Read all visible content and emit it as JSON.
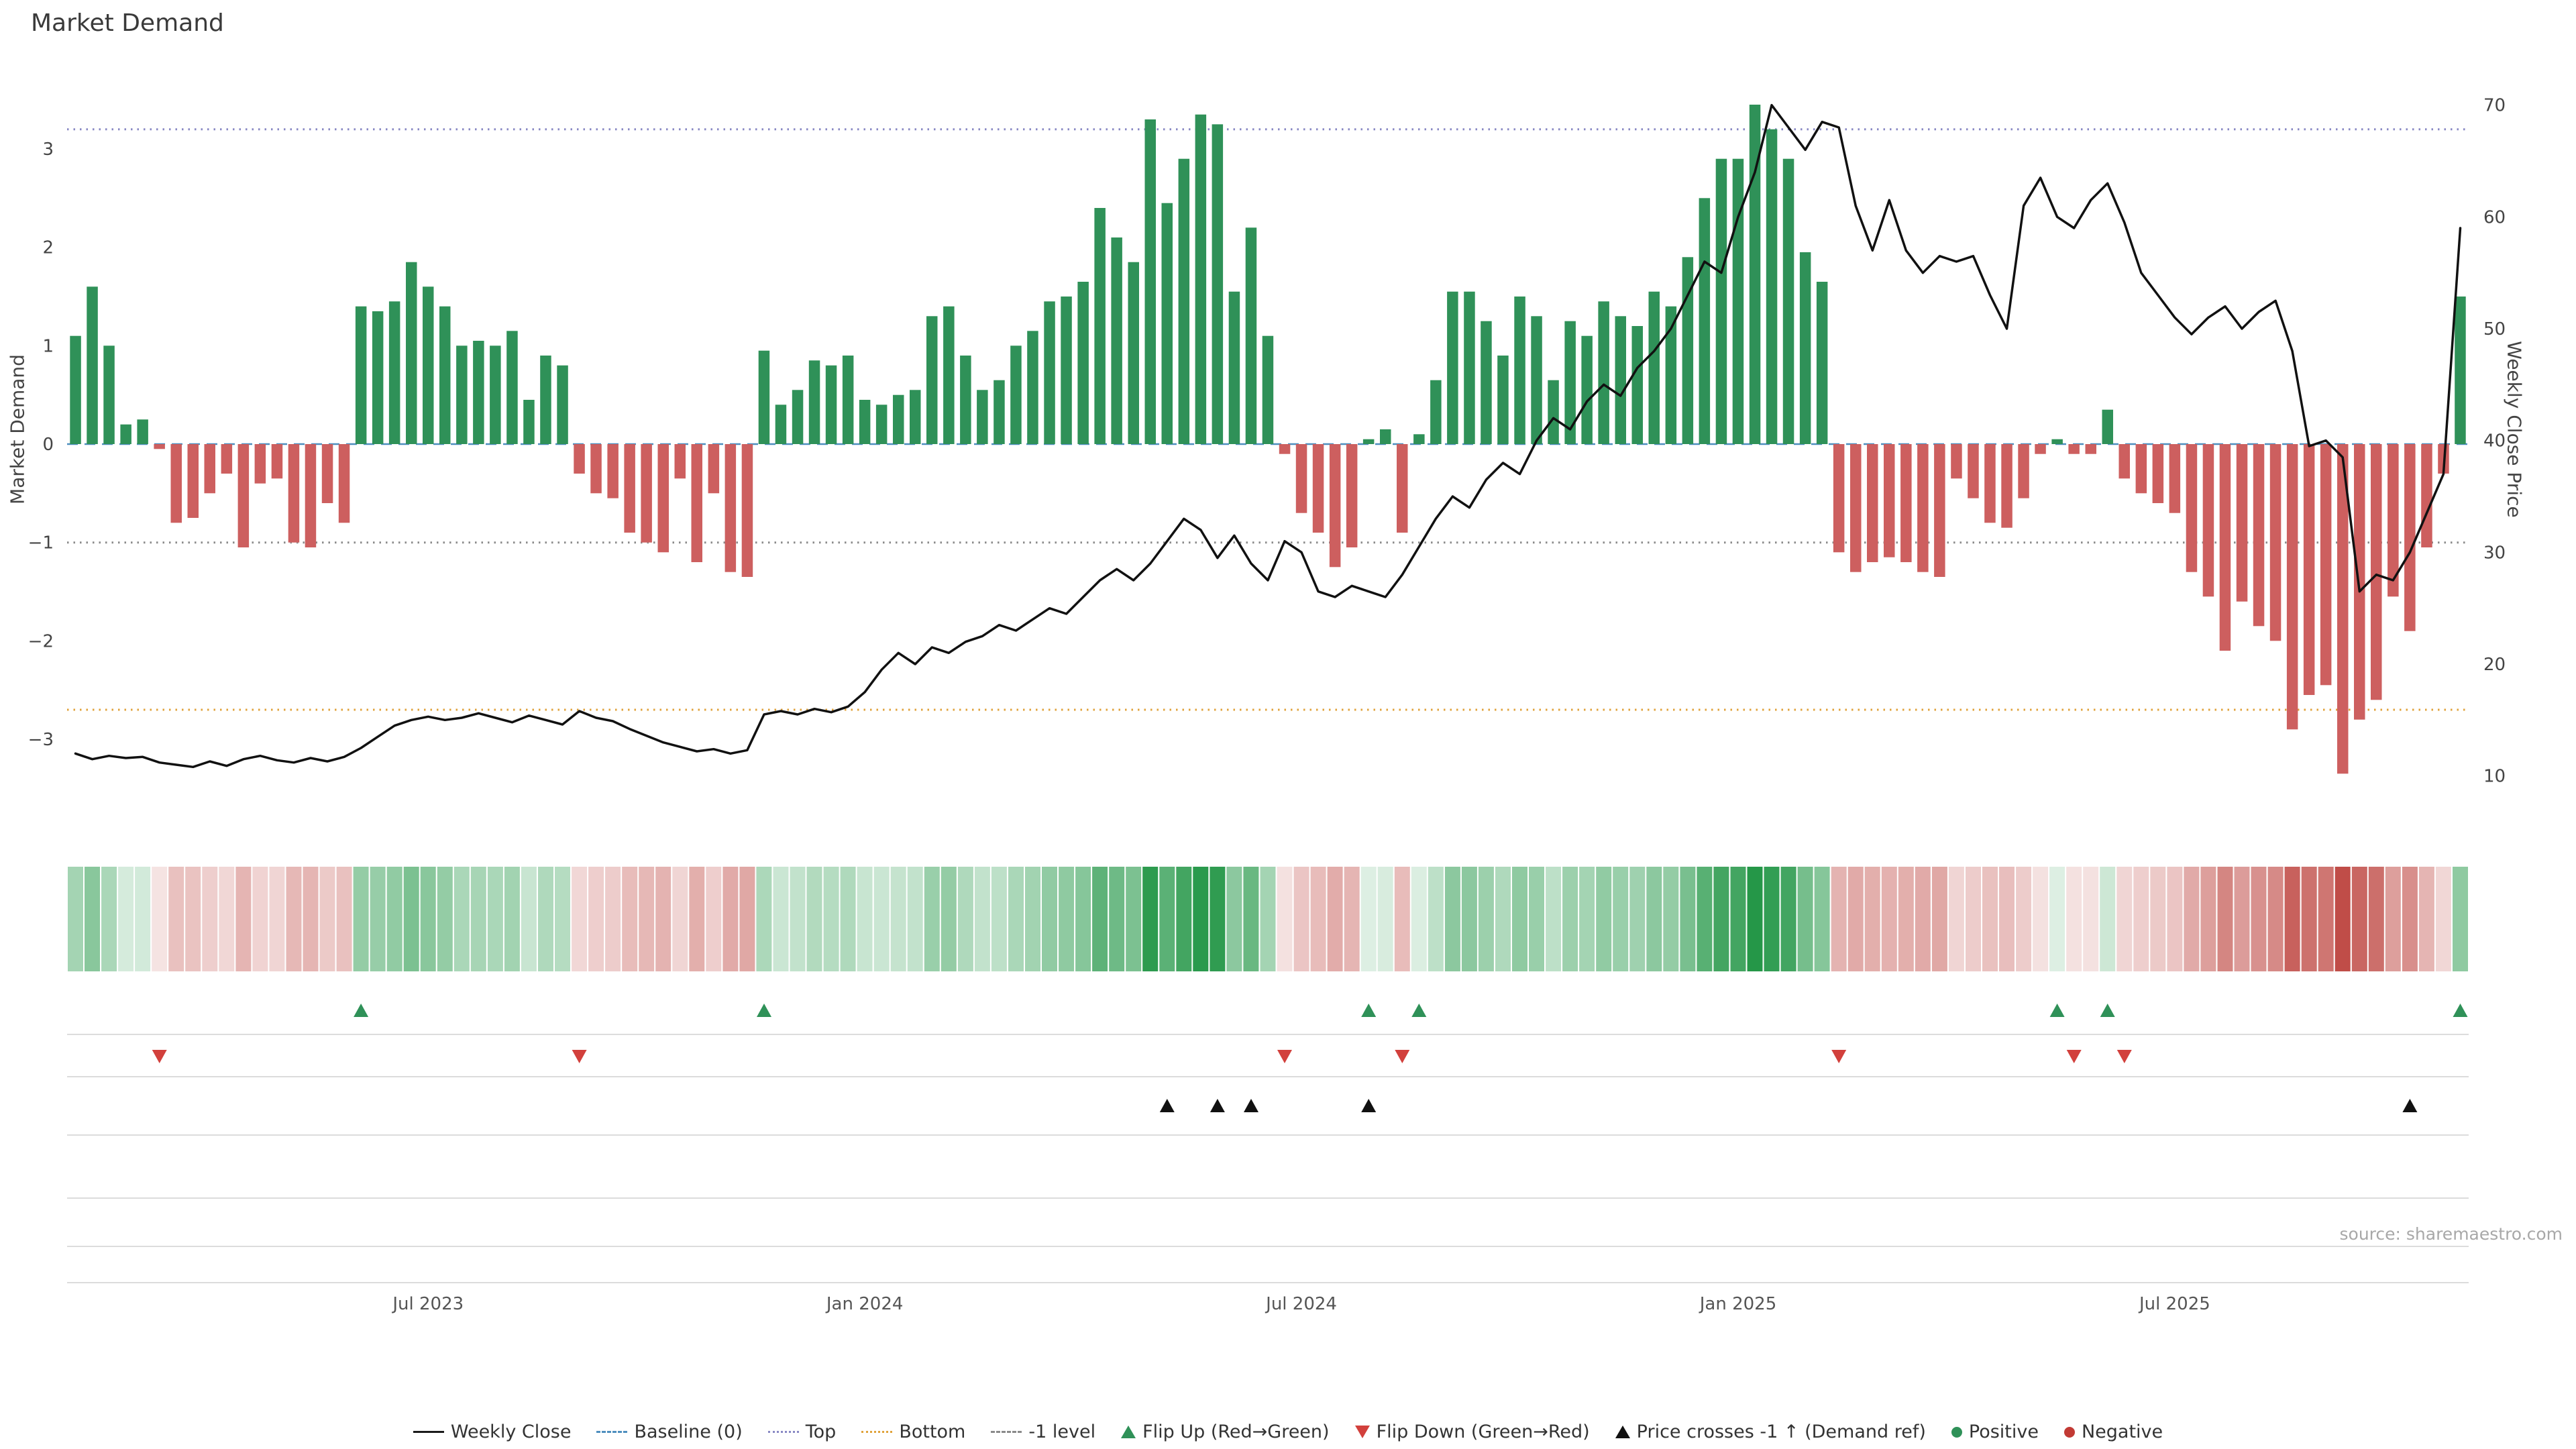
{
  "title": "Market Demand",
  "source": "source: sharemaestro.com",
  "axes": {
    "left_label": "Market Demand",
    "right_label": "Weekly Close Price",
    "left_ticks": [
      {
        "label": "3",
        "value": 3
      },
      {
        "label": "2",
        "value": 2
      },
      {
        "label": "1",
        "value": 1
      },
      {
        "label": "0",
        "value": 0
      },
      {
        "label": "−1",
        "value": -1
      },
      {
        "label": "−2",
        "value": -2
      },
      {
        "label": "−3",
        "value": -3
      }
    ],
    "right_ticks": [
      70,
      60,
      50,
      40,
      30,
      20,
      10
    ],
    "x_ticks": [
      {
        "label": "Jul 2023",
        "week": 21
      },
      {
        "label": "Jan 2024",
        "week": 47
      },
      {
        "label": "Jul 2024",
        "week": 73
      },
      {
        "label": "Jan 2025",
        "week": 99
      },
      {
        "label": "Jul 2025",
        "week": 125
      }
    ]
  },
  "colors": {
    "positive": "#2f9158",
    "negative": "#cd5f5f",
    "price_line": "#111111",
    "top_line": "#8888c4",
    "bottom_line": "#e0a23a",
    "minus_one_line": "#8a8a8a",
    "baseline_line": "#4f8fbf",
    "flip_up": "#2f9158",
    "flip_down": "#d2403c",
    "price_cross": "#111111",
    "lane_divider": "#dcdcdc",
    "tick_text": "#444444",
    "source_text": "#a8a8a8"
  },
  "legend": [
    {
      "label": "Weekly Close",
      "glyph": "line-solid",
      "color": "#1a1a1a"
    },
    {
      "label": "Baseline (0)",
      "glyph": "line-dashed",
      "color": "#4f8fbf"
    },
    {
      "label": "Top",
      "glyph": "line-dotted",
      "color": "#8888c4"
    },
    {
      "label": "Bottom",
      "glyph": "line-dotted",
      "color": "#e0a23a"
    },
    {
      "label": "-1 level",
      "glyph": "line-dashed",
      "color": "#8a8a8a"
    },
    {
      "label": "Flip Up (Red→Green)",
      "glyph": "tri-up",
      "color": "#2f9158"
    },
    {
      "label": "Flip Down (Green→Red)",
      "glyph": "tri-down",
      "color": "#d2403c"
    },
    {
      "label": "Price crosses -1 ↑ (Demand ref)",
      "glyph": "tri-up",
      "color": "#111111"
    },
    {
      "label": "Positive",
      "glyph": "dot",
      "color": "#2f9158"
    },
    {
      "label": "Negative",
      "glyph": "dot",
      "color": "#c23a34"
    }
  ],
  "chart_data": {
    "type": "bar+line",
    "title": "Market Demand",
    "start_date": "2023-02-06",
    "interval": "weekly",
    "left_axis_range": [
      -3.6,
      3.9
    ],
    "right_axis_range": [
      8,
      74
    ],
    "reference_lines": {
      "baseline": 0,
      "top": 3.2,
      "bottom": -2.7,
      "minus_one": -1
    },
    "series": [
      {
        "name": "Market Demand",
        "type": "bar",
        "axis": "left",
        "values": [
          1.1,
          1.6,
          1.0,
          0.2,
          0.25,
          -0.05,
          -0.8,
          -0.75,
          -0.5,
          -0.3,
          -1.05,
          -0.4,
          -0.35,
          -1.0,
          -1.05,
          -0.6,
          -0.8,
          1.4,
          1.35,
          1.45,
          1.85,
          1.6,
          1.4,
          1.0,
          1.05,
          1.0,
          1.15,
          0.45,
          0.9,
          0.8,
          -0.3,
          -0.5,
          -0.55,
          -0.9,
          -1.0,
          -1.1,
          -0.35,
          -1.2,
          -0.5,
          -1.3,
          -1.35,
          0.95,
          0.4,
          0.55,
          0.85,
          0.8,
          0.9,
          0.45,
          0.4,
          0.5,
          0.55,
          1.3,
          1.4,
          0.9,
          0.55,
          0.65,
          1.0,
          1.15,
          1.45,
          1.5,
          1.65,
          2.4,
          2.1,
          1.85,
          3.3,
          2.45,
          2.9,
          3.35,
          3.25,
          1.55,
          2.2,
          1.1,
          -0.1,
          -0.7,
          -0.9,
          -1.25,
          -1.05,
          0.05,
          0.15,
          -0.9,
          0.1,
          0.65,
          1.55,
          1.55,
          1.25,
          0.9,
          1.5,
          1.3,
          0.65,
          1.25,
          1.1,
          1.45,
          1.3,
          1.2,
          1.55,
          1.4,
          1.9,
          2.5,
          2.9,
          2.9,
          3.45,
          3.2,
          2.9,
          1.95,
          1.65,
          -1.1,
          -1.3,
          -1.2,
          -1.15,
          -1.2,
          -1.3,
          -1.35,
          -0.35,
          -0.55,
          -0.8,
          -0.85,
          -0.55,
          -0.1,
          0.05,
          -0.1,
          -0.1,
          0.35,
          -0.35,
          -0.5,
          -0.6,
          -0.7,
          -1.3,
          -1.55,
          -2.1,
          -1.6,
          -1.85,
          -2.0,
          -2.9,
          -2.55,
          -2.45,
          -3.35,
          -2.8,
          -2.6,
          -1.55,
          -1.9,
          -1.05,
          -0.3,
          1.5
        ]
      },
      {
        "name": "Weekly Close",
        "type": "line",
        "axis": "right",
        "values": [
          12.0,
          11.5,
          11.8,
          11.6,
          11.7,
          11.2,
          11.0,
          10.8,
          11.3,
          10.9,
          11.5,
          11.8,
          11.4,
          11.2,
          11.6,
          11.3,
          11.7,
          12.5,
          13.5,
          14.5,
          15.0,
          15.3,
          15.0,
          15.2,
          15.6,
          15.2,
          14.8,
          15.4,
          15.0,
          14.6,
          15.8,
          15.2,
          14.9,
          14.2,
          13.6,
          13.0,
          12.6,
          12.2,
          12.4,
          12.0,
          12.3,
          15.5,
          15.8,
          15.5,
          16.0,
          15.7,
          16.2,
          17.5,
          19.5,
          21.0,
          20.0,
          21.5,
          21.0,
          22.0,
          22.5,
          23.5,
          23.0,
          24.0,
          25.0,
          24.5,
          26.0,
          27.5,
          28.5,
          27.5,
          29.0,
          31.0,
          33.0,
          32.0,
          29.5,
          31.5,
          29.0,
          27.5,
          31.0,
          30.0,
          26.5,
          26.0,
          27.0,
          26.5,
          26.0,
          28.0,
          30.5,
          33.0,
          35.0,
          34.0,
          36.5,
          38.0,
          37.0,
          40.0,
          42.0,
          41.0,
          43.5,
          45.0,
          44.0,
          46.5,
          48.0,
          50.0,
          53.0,
          56.0,
          55.0,
          60.0,
          64.0,
          70.0,
          68.0,
          66.0,
          68.5,
          68.0,
          61.0,
          57.0,
          61.5,
          57.0,
          55.0,
          56.5,
          56.0,
          56.5,
          53.0,
          50.0,
          61.0,
          63.5,
          60.0,
          59.0,
          61.5,
          63.0,
          59.5,
          55.0,
          53.0,
          51.0,
          49.5,
          51.0,
          52.0,
          50.0,
          51.5,
          52.5,
          48.0,
          39.5,
          40.0,
          38.5,
          26.5,
          28.0,
          27.5,
          30.0,
          33.5,
          37.0,
          59.0
        ]
      }
    ],
    "markers": {
      "flip_up_weeks": [
        17,
        41,
        77,
        80,
        118,
        121,
        142
      ],
      "flip_down_weeks": [
        5,
        30,
        72,
        79,
        105,
        119,
        122
      ],
      "price_cross_weeks": [
        65,
        68,
        70,
        77,
        139
      ]
    }
  }
}
